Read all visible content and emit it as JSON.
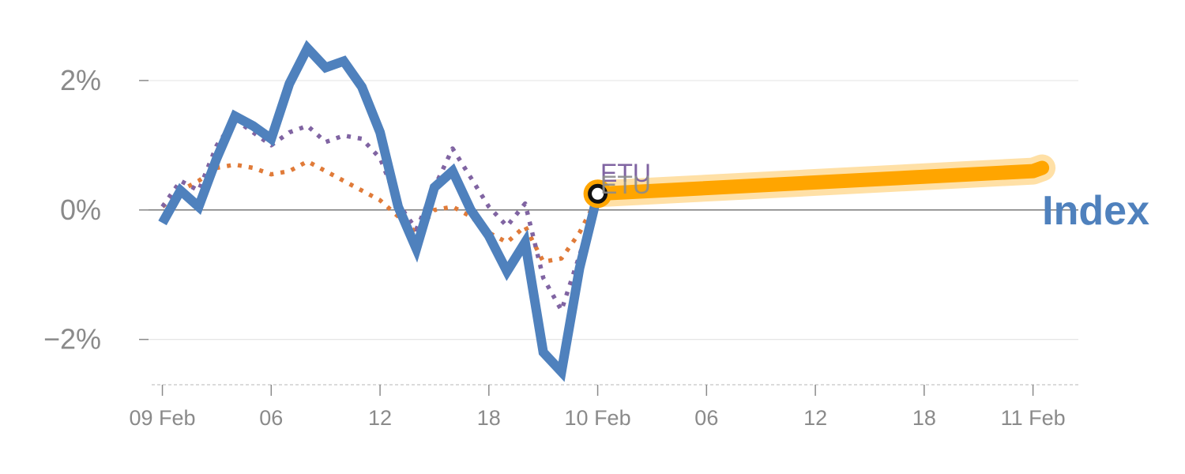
{
  "chart_data": {
    "type": "line",
    "x_ticks": [
      {
        "t": 0,
        "label": "09 Feb"
      },
      {
        "t": 6,
        "label": "06"
      },
      {
        "t": 12,
        "label": "12"
      },
      {
        "t": 18,
        "label": "18"
      },
      {
        "t": 24,
        "label": "10 Feb"
      },
      {
        "t": 30,
        "label": "06"
      },
      {
        "t": 36,
        "label": "12"
      },
      {
        "t": 42,
        "label": "18"
      },
      {
        "t": 48,
        "label": "11 Feb"
      }
    ],
    "y_ticks": [
      {
        "v": 2,
        "label": "2%"
      },
      {
        "v": 0,
        "label": "0%"
      },
      {
        "v": -2,
        "label": "−2%"
      }
    ],
    "xlim": [
      -1.2,
      50.5
    ],
    "ylim": [
      -2.7,
      3.0
    ],
    "grid": true,
    "series": [
      {
        "name": "Index",
        "color": "#4f81bd",
        "style": "solid",
        "points": [
          [
            0,
            -0.2
          ],
          [
            1,
            0.3
          ],
          [
            2,
            0.05
          ],
          [
            3,
            0.8
          ],
          [
            4,
            1.45
          ],
          [
            5,
            1.3
          ],
          [
            6,
            1.1
          ],
          [
            7,
            1.95
          ],
          [
            8,
            2.5
          ],
          [
            9,
            2.2
          ],
          [
            10,
            2.3
          ],
          [
            11,
            1.9
          ],
          [
            12,
            1.2
          ],
          [
            13,
            0.05
          ],
          [
            14,
            -0.6
          ],
          [
            15,
            0.35
          ],
          [
            16,
            0.6
          ],
          [
            17,
            0.0
          ],
          [
            18,
            -0.4
          ],
          [
            19,
            -0.95
          ],
          [
            20,
            -0.5
          ],
          [
            21,
            -2.2
          ],
          [
            22,
            -2.5
          ],
          [
            23,
            -0.9
          ],
          [
            24,
            0.25
          ]
        ]
      },
      {
        "name": "",
        "color": "#8064a2",
        "style": "dotted",
        "points": [
          [
            0,
            0.05
          ],
          [
            1,
            0.45
          ],
          [
            2,
            0.3
          ],
          [
            3,
            1.0
          ],
          [
            4,
            1.4
          ],
          [
            5,
            1.2
          ],
          [
            6,
            1.0
          ],
          [
            7,
            1.2
          ],
          [
            8,
            1.3
          ],
          [
            9,
            1.05
          ],
          [
            10,
            1.15
          ],
          [
            11,
            1.1
          ],
          [
            12,
            0.8
          ],
          [
            13,
            0.1
          ],
          [
            14,
            -0.3
          ],
          [
            15,
            0.35
          ],
          [
            16,
            0.95
          ],
          [
            17,
            0.5
          ],
          [
            18,
            0.05
          ],
          [
            19,
            -0.25
          ],
          [
            20,
            0.1
          ],
          [
            21,
            -1.05
          ],
          [
            22,
            -1.55
          ],
          [
            23,
            -0.7
          ],
          [
            24,
            0.2
          ]
        ]
      },
      {
        "name": "",
        "color": "#e07b39",
        "style": "dotted",
        "points": [
          [
            0,
            0.05
          ],
          [
            1,
            0.3
          ],
          [
            2,
            0.45
          ],
          [
            3,
            0.65
          ],
          [
            4,
            0.7
          ],
          [
            5,
            0.65
          ],
          [
            6,
            0.55
          ],
          [
            7,
            0.6
          ],
          [
            8,
            0.75
          ],
          [
            9,
            0.6
          ],
          [
            10,
            0.45
          ],
          [
            11,
            0.3
          ],
          [
            12,
            0.15
          ],
          [
            13,
            -0.1
          ],
          [
            14,
            -0.35
          ],
          [
            15,
            0.0
          ],
          [
            16,
            0.05
          ],
          [
            17,
            -0.1
          ],
          [
            18,
            -0.35
          ],
          [
            19,
            -0.5
          ],
          [
            20,
            -0.25
          ],
          [
            21,
            -0.8
          ],
          [
            22,
            -0.75
          ],
          [
            23,
            -0.35
          ],
          [
            24,
            0.2
          ]
        ]
      },
      {
        "name": "",
        "color": "#ffa500",
        "style": "band",
        "points": [
          [
            24,
            0.25
          ],
          [
            48,
            0.6
          ],
          [
            48.5,
            0.65
          ]
        ]
      }
    ],
    "marker": {
      "t": 24,
      "v": 0.25
    },
    "annotations": [
      "ETU",
      "ETU"
    ],
    "end_label": "Index"
  }
}
